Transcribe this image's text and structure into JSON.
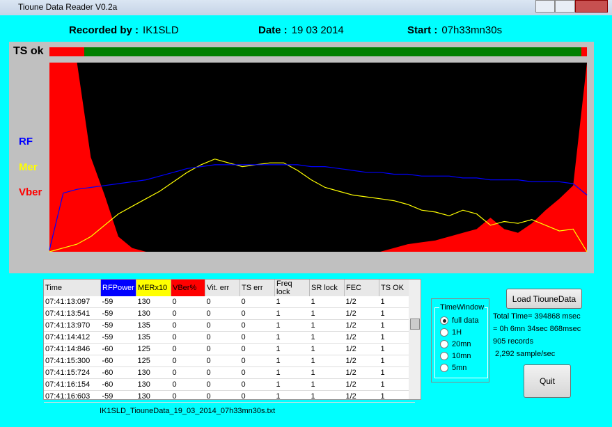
{
  "window": {
    "title": "Tioune Data Reader V0.2a"
  },
  "header": {
    "recorded_label": "Recorded by :",
    "recorded": "IK1SLD",
    "date_label": "Date :",
    "date": "19 03 2014",
    "start_label": "Start :",
    "start": "07h33mn30s"
  },
  "status": {
    "label": "TS ok"
  },
  "plot": {
    "ylim": [
      0,
      100
    ],
    "series": [
      {
        "name": "Vber",
        "color": "#ff0000",
        "values": [
          100,
          100,
          100,
          50,
          30,
          8,
          2,
          0,
          0,
          0,
          0,
          0,
          0,
          0,
          0,
          0,
          0,
          0,
          0,
          0,
          0,
          0,
          0,
          0,
          0,
          2,
          4,
          5,
          6,
          8,
          10,
          12,
          18,
          12,
          10,
          15,
          22,
          28,
          35,
          100
        ]
      },
      {
        "name": "Mer",
        "color": "#ffff00",
        "values": [
          0,
          2,
          4,
          8,
          14,
          20,
          24,
          28,
          32,
          37,
          42,
          46,
          49,
          47,
          45,
          46,
          47,
          47,
          43,
          38,
          34,
          32,
          30,
          29,
          28,
          27,
          25,
          22,
          21,
          19,
          22,
          20,
          14,
          16,
          15,
          17,
          14,
          11,
          12,
          0
        ]
      },
      {
        "name": "RF",
        "color": "#0000ff",
        "values": [
          1,
          31,
          33,
          34,
          35,
          36,
          37,
          38,
          40,
          42,
          44,
          45,
          46,
          46,
          46,
          46,
          46,
          46,
          46,
          45,
          45,
          44,
          43,
          42,
          42,
          41,
          41,
          40,
          40,
          40,
          39,
          39,
          38,
          38,
          38,
          37,
          37,
          37,
          36,
          30
        ]
      }
    ]
  },
  "table": {
    "columns": [
      "Time",
      "RFPower",
      "MERx10",
      "VBer%",
      "Vit. err",
      "TS err",
      "Freq lock",
      "SR lock",
      "FEC",
      "TS OK"
    ],
    "rows": [
      [
        "07:41:13:097",
        -59,
        130,
        0,
        0,
        0,
        1,
        1,
        "1/2",
        1
      ],
      [
        "07:41:13:541",
        -59,
        130,
        0,
        0,
        0,
        1,
        1,
        "1/2",
        1
      ],
      [
        "07:41:13:970",
        -59,
        135,
        0,
        0,
        0,
        1,
        1,
        "1/2",
        1
      ],
      [
        "07:41:14:412",
        -59,
        135,
        0,
        0,
        0,
        1,
        1,
        "1/2",
        1
      ],
      [
        "07:41:14:846",
        -60,
        125,
        0,
        0,
        0,
        1,
        1,
        "1/2",
        1
      ],
      [
        "07:41:15:300",
        -60,
        125,
        0,
        0,
        0,
        1,
        1,
        "1/2",
        1
      ],
      [
        "07:41:15:724",
        -60,
        130,
        0,
        0,
        0,
        1,
        1,
        "1/2",
        1
      ],
      [
        "07:41:16:154",
        -60,
        130,
        0,
        0,
        0,
        1,
        1,
        "1/2",
        1
      ],
      [
        "07:41:16:603",
        -59,
        130,
        0,
        0,
        0,
        1,
        1,
        "1/2",
        1
      ]
    ]
  },
  "file": "IK1SLD_TiouneData_19_03_2014_07h33mn30s.txt",
  "time_window": {
    "title": "TimeWindow",
    "options": [
      "full data",
      "1H",
      "20mn",
      "10mn",
      "5mn"
    ],
    "selected": 0
  },
  "load_button": "Load TiouneData",
  "stats": [
    "Total Time= 394868 msec",
    "= 0h 6mn 34sec 868msec",
    "905 records",
    " 2,292 sample/sec"
  ],
  "quit_button": "Quit"
}
